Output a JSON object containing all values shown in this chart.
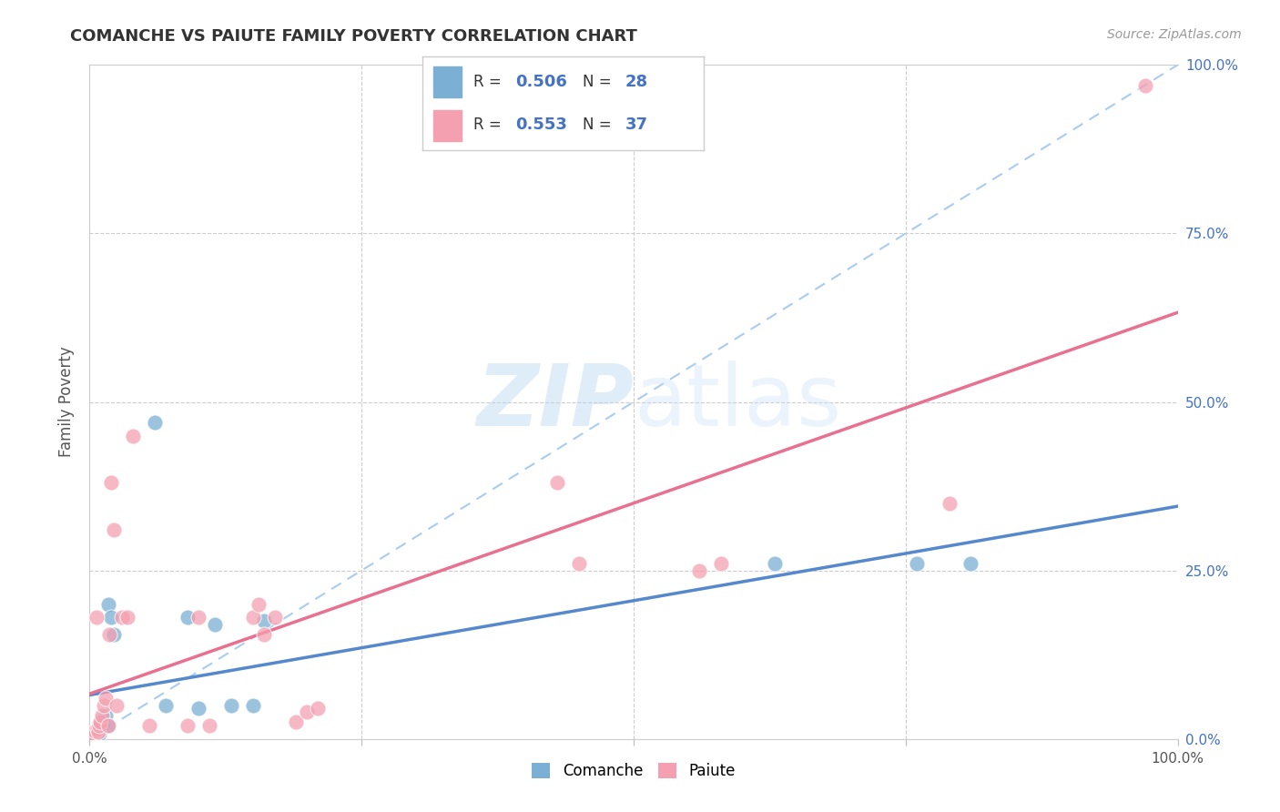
{
  "title": "COMANCHE VS PAIUTE FAMILY POVERTY CORRELATION CHART",
  "source": "Source: ZipAtlas.com",
  "ylabel": "Family Poverty",
  "xlim": [
    0,
    1
  ],
  "ylim": [
    0,
    1
  ],
  "xtick_positions": [
    0,
    0.25,
    0.5,
    0.75,
    1.0
  ],
  "ytick_positions": [
    0,
    0.25,
    0.5,
    0.75,
    1.0
  ],
  "ytick_labels_right": [
    "0.0%",
    "25.0%",
    "50.0%",
    "75.0%",
    "100.0%"
  ],
  "comanche_color": "#7bafd4",
  "paiute_color": "#f4a0b0",
  "comanche_R": 0.506,
  "comanche_N": 28,
  "paiute_R": 0.553,
  "paiute_N": 37,
  "comanche_line_color": "#5588cc",
  "paiute_line_color": "#e87090",
  "diagonal_color": "#aaccee",
  "background_color": "#ffffff",
  "watermark_zip": "ZIP",
  "watermark_atlas": "atlas",
  "comanche_x": [
    0.002,
    0.003,
    0.004,
    0.005,
    0.006,
    0.007,
    0.008,
    0.009,
    0.01,
    0.011,
    0.012,
    0.013,
    0.015,
    0.016,
    0.017,
    0.02,
    0.022,
    0.06,
    0.07,
    0.09,
    0.1,
    0.115,
    0.13,
    0.15,
    0.16,
    0.63,
    0.76,
    0.81
  ],
  "comanche_y": [
    0.005,
    0.003,
    0.008,
    0.012,
    0.01,
    0.015,
    0.02,
    0.008,
    0.018,
    0.03,
    0.025,
    0.022,
    0.035,
    0.02,
    0.2,
    0.18,
    0.155,
    0.47,
    0.05,
    0.18,
    0.045,
    0.17,
    0.05,
    0.05,
    0.175,
    0.26,
    0.26,
    0.26
  ],
  "paiute_x": [
    0.002,
    0.003,
    0.004,
    0.005,
    0.006,
    0.007,
    0.008,
    0.009,
    0.01,
    0.011,
    0.013,
    0.015,
    0.017,
    0.018,
    0.02,
    0.022,
    0.025,
    0.03,
    0.035,
    0.04,
    0.055,
    0.09,
    0.1,
    0.11,
    0.15,
    0.155,
    0.16,
    0.17,
    0.19,
    0.2,
    0.21,
    0.43,
    0.45,
    0.56,
    0.58,
    0.79,
    0.97
  ],
  "paiute_y": [
    0.003,
    0.008,
    0.005,
    0.012,
    0.18,
    0.015,
    0.01,
    0.02,
    0.025,
    0.035,
    0.05,
    0.06,
    0.02,
    0.155,
    0.38,
    0.31,
    0.05,
    0.18,
    0.18,
    0.45,
    0.02,
    0.02,
    0.18,
    0.02,
    0.18,
    0.2,
    0.155,
    0.18,
    0.025,
    0.04,
    0.045,
    0.38,
    0.26,
    0.25,
    0.26,
    0.35,
    0.97
  ]
}
